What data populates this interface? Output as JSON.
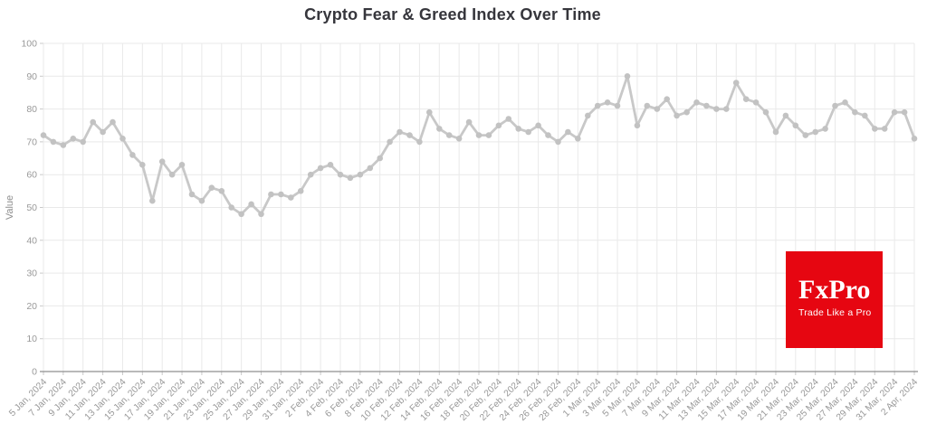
{
  "page": {
    "title": "Crypto Fear & Greed Index Over Time"
  },
  "chart_data": {
    "type": "line",
    "title": "Crypto Fear & Greed Index Over Time",
    "xlabel": "",
    "ylabel": "Value",
    "ylim": [
      0,
      100
    ],
    "y_ticks": [
      0,
      10,
      20,
      30,
      40,
      50,
      60,
      70,
      80,
      90,
      100
    ],
    "grid": true,
    "legend": "none",
    "x_tick_labels": [
      "5 Jan, 2024",
      "7 Jan, 2024",
      "9 Jan, 2024",
      "11 Jan, 2024",
      "13 Jan, 2024",
      "15 Jan, 2024",
      "17 Jan, 2024",
      "19 Jan, 2024",
      "21 Jan, 2024",
      "23 Jan, 2024",
      "25 Jan, 2024",
      "27 Jan, 2024",
      "29 Jan, 2024",
      "31 Jan, 2024",
      "2 Feb, 2024",
      "4 Feb, 2024",
      "6 Feb, 2024",
      "8 Feb, 2024",
      "10 Feb, 2024",
      "12 Feb, 2024",
      "14 Feb, 2024",
      "16 Feb, 2024",
      "18 Feb, 2024",
      "20 Feb, 2024",
      "22 Feb, 2024",
      "24 Feb, 2024",
      "26 Feb, 2024",
      "28 Feb, 2024",
      "1 Mar, 2024",
      "3 Mar, 2024",
      "5 Mar, 2024",
      "7 Mar, 2024",
      "9 Mar, 2024",
      "11 Mar, 2024",
      "13 Mar, 2024",
      "15 Mar, 2024",
      "17 Mar, 2024",
      "19 Mar, 2024",
      "21 Mar, 2024",
      "23 Mar, 2024",
      "25 Mar, 2024",
      "27 Mar, 2024",
      "29 Mar, 2024",
      "31 Mar, 2024",
      "2 Apr, 2024"
    ],
    "dates": [
      "5 Jan",
      "6 Jan",
      "7 Jan",
      "8 Jan",
      "9 Jan",
      "10 Jan",
      "11 Jan",
      "12 Jan",
      "13 Jan",
      "14 Jan",
      "15 Jan",
      "16 Jan",
      "17 Jan",
      "18 Jan",
      "19 Jan",
      "20 Jan",
      "21 Jan",
      "22 Jan",
      "23 Jan",
      "24 Jan",
      "25 Jan",
      "26 Jan",
      "27 Jan",
      "28 Jan",
      "29 Jan",
      "30 Jan",
      "31 Jan",
      "1 Feb",
      "2 Feb",
      "3 Feb",
      "4 Feb",
      "5 Feb",
      "6 Feb",
      "7 Feb",
      "8 Feb",
      "9 Feb",
      "10 Feb",
      "11 Feb",
      "12 Feb",
      "13 Feb",
      "14 Feb",
      "15 Feb",
      "16 Feb",
      "17 Feb",
      "18 Feb",
      "19 Feb",
      "20 Feb",
      "21 Feb",
      "22 Feb",
      "23 Feb",
      "24 Feb",
      "25 Feb",
      "26 Feb",
      "27 Feb",
      "28 Feb",
      "29 Feb",
      "1 Mar",
      "2 Mar",
      "3 Mar",
      "4 Mar",
      "5 Mar",
      "6 Mar",
      "7 Mar",
      "8 Mar",
      "9 Mar",
      "10 Mar",
      "11 Mar",
      "12 Mar",
      "13 Mar",
      "14 Mar",
      "15 Mar",
      "16 Mar",
      "17 Mar",
      "18 Mar",
      "19 Mar",
      "20 Mar",
      "21 Mar",
      "22 Mar",
      "23 Mar",
      "24 Mar",
      "25 Mar",
      "26 Mar",
      "27 Mar",
      "28 Mar",
      "29 Mar",
      "30 Mar",
      "31 Mar",
      "1 Apr",
      "2 Apr"
    ],
    "values": [
      72,
      70,
      69,
      71,
      70,
      76,
      73,
      76,
      71,
      66,
      63,
      52,
      64,
      60,
      63,
      54,
      52,
      56,
      55,
      50,
      48,
      51,
      48,
      54,
      54,
      53,
      55,
      60,
      62,
      63,
      60,
      59,
      60,
      62,
      65,
      70,
      73,
      72,
      70,
      79,
      74,
      72,
      71,
      76,
      72,
      72,
      75,
      77,
      74,
      73,
      75,
      72,
      70,
      73,
      71,
      78,
      81,
      82,
      81,
      90,
      75,
      81,
      80,
      83,
      78,
      79,
      82,
      81,
      80,
      80,
      88,
      83,
      82,
      79,
      73,
      78,
      75,
      72,
      73,
      74,
      81,
      82,
      79,
      78,
      74,
      74,
      79,
      79,
      71
    ]
  },
  "colors": {
    "line": "#c8c8c8",
    "marker": "#c2c2c2",
    "grid": "#e9e9e9",
    "axis_line": "#8f8f8f",
    "tick": "#c9c9c9",
    "tick_label": "#999999",
    "title": "#36363c",
    "axis_title": "#8e8e8e"
  },
  "logo": {
    "brand": "FxPro",
    "tagline": "Trade Like a Pro",
    "bg": "#e60611",
    "text": "#ffffff"
  }
}
